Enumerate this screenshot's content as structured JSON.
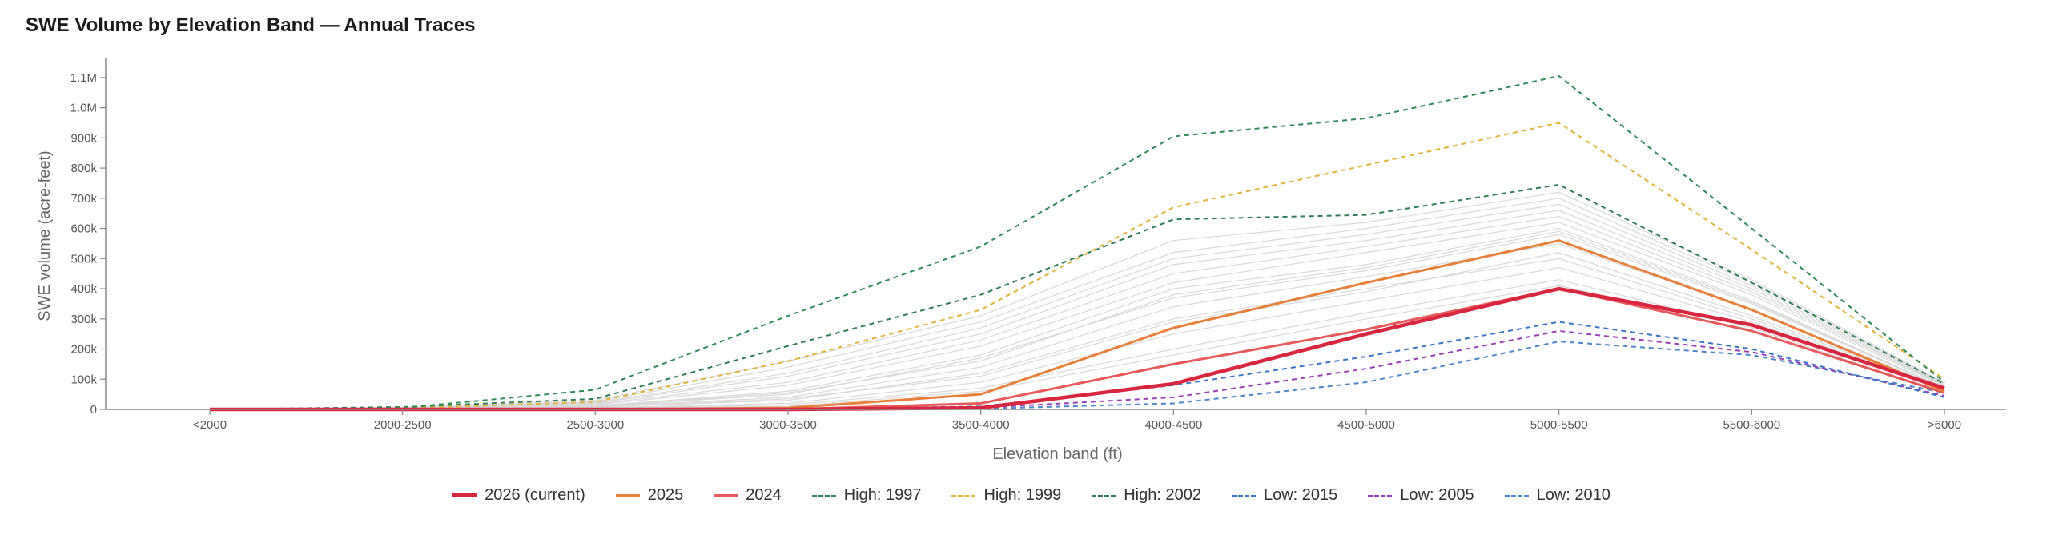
{
  "chart_data": {
    "type": "line",
    "title": "SWE Volume by Elevation Band — Annual Traces",
    "xlabel": "Elevation band (ft)",
    "ylabel": "SWE volume (acre-feet)",
    "categories": [
      "<2000",
      "2000-2500",
      "2500-3000",
      "3000-3500",
      "3500-4000",
      "4000-4500",
      "4500-5000",
      "5000-5500",
      "5500-6000",
      ">6000"
    ],
    "ylim": [
      0,
      1150000
    ],
    "yticks": [
      {
        "value": 0,
        "label": "0"
      },
      {
        "value": 100000,
        "label": "100k"
      },
      {
        "value": 200000,
        "label": "200k"
      },
      {
        "value": 300000,
        "label": "300k"
      },
      {
        "value": 400000,
        "label": "400k"
      },
      {
        "value": 500000,
        "label": "500k"
      },
      {
        "value": 600000,
        "label": "600k"
      },
      {
        "value": 700000,
        "label": "700k"
      },
      {
        "value": 800000,
        "label": "800k"
      },
      {
        "value": 900000,
        "label": "900k"
      },
      {
        "value": 1000000,
        "label": "1.0M"
      },
      {
        "value": 1100000,
        "label": "1.1M"
      }
    ],
    "grid": false,
    "legend_position": "bottom",
    "background_traces": {
      "color": "#d9d9d9",
      "values": [
        [
          0,
          2000,
          8000,
          30000,
          120000,
          300000,
          400000,
          500000,
          300000,
          60000
        ],
        [
          0,
          3000,
          10000,
          50000,
          170000,
          370000,
          460000,
          580000,
          350000,
          70000
        ],
        [
          0,
          4000,
          15000,
          80000,
          210000,
          420000,
          520000,
          620000,
          380000,
          75000
        ],
        [
          0,
          5000,
          20000,
          110000,
          250000,
          480000,
          560000,
          660000,
          400000,
          80000
        ],
        [
          0,
          2000,
          5000,
          20000,
          90000,
          250000,
          360000,
          470000,
          290000,
          60000
        ],
        [
          0,
          6000,
          25000,
          140000,
          290000,
          520000,
          600000,
          700000,
          420000,
          85000
        ],
        [
          0,
          3000,
          12000,
          60000,
          180000,
          400000,
          480000,
          600000,
          360000,
          70000
        ],
        [
          0,
          1000,
          4000,
          15000,
          70000,
          200000,
          320000,
          430000,
          270000,
          55000
        ],
        [
          0,
          4000,
          18000,
          90000,
          230000,
          450000,
          540000,
          640000,
          390000,
          78000
        ],
        [
          0,
          2000,
          9000,
          40000,
          140000,
          340000,
          440000,
          550000,
          330000,
          68000
        ],
        [
          0,
          7000,
          30000,
          160000,
          310000,
          560000,
          620000,
          720000,
          430000,
          88000
        ],
        [
          0,
          3000,
          11000,
          55000,
          160000,
          380000,
          470000,
          590000,
          355000,
          72000
        ],
        [
          0,
          1000,
          3000,
          10000,
          60000,
          180000,
          300000,
          410000,
          260000,
          52000
        ],
        [
          0,
          5000,
          22000,
          120000,
          270000,
          500000,
          580000,
          680000,
          410000,
          82000
        ],
        [
          0,
          2000,
          7000,
          35000,
          110000,
          290000,
          390000,
          520000,
          310000,
          64000
        ]
      ]
    },
    "series": [
      {
        "name": "2026 (current)",
        "color": "#d7263d",
        "dashed": false,
        "width": 4.5,
        "values": [
          0,
          0,
          0,
          0,
          5000,
          85000,
          250000,
          400000,
          280000,
          70000
        ]
      },
      {
        "name": "2025",
        "color": "#e8803a",
        "dashed": false,
        "width": 3,
        "values": [
          0,
          0,
          0,
          5000,
          50000,
          270000,
          420000,
          560000,
          330000,
          60000
        ]
      },
      {
        "name": "2024",
        "color": "#e85a5a",
        "dashed": false,
        "width": 3,
        "values": [
          0,
          0,
          0,
          0,
          20000,
          150000,
          265000,
          400000,
          260000,
          55000
        ]
      },
      {
        "name": "High: 1997",
        "color": "#2e8b57",
        "dashed": true,
        "width": 2,
        "values": [
          0,
          5000,
          65000,
          310000,
          540000,
          905000,
          965000,
          1105000,
          600000,
          90000
        ]
      },
      {
        "name": "High: 1999",
        "color": "#e2b33a",
        "dashed": true,
        "width": 2,
        "values": [
          0,
          3000,
          25000,
          160000,
          330000,
          670000,
          810000,
          950000,
          530000,
          100000
        ]
      },
      {
        "name": "High: 2002",
        "color": "#2e7d52",
        "dashed": true,
        "width": 2,
        "values": [
          0,
          8000,
          35000,
          210000,
          380000,
          630000,
          645000,
          745000,
          420000,
          85000
        ]
      },
      {
        "name": "Low: 2015",
        "color": "#3b77c9",
        "dashed": true,
        "width": 2,
        "values": [
          0,
          0,
          0,
          0,
          10000,
          80000,
          175000,
          290000,
          200000,
          40000
        ]
      },
      {
        "name": "Low: 2005",
        "color": "#9b3fb5",
        "dashed": true,
        "width": 2,
        "values": [
          0,
          0,
          0,
          0,
          5000,
          40000,
          135000,
          260000,
          190000,
          45000
        ]
      },
      {
        "name": "Low: 2010",
        "color": "#4c86c9",
        "dashed": true,
        "width": 2,
        "values": [
          0,
          0,
          0,
          0,
          2000,
          20000,
          90000,
          225000,
          180000,
          55000
        ]
      }
    ]
  }
}
